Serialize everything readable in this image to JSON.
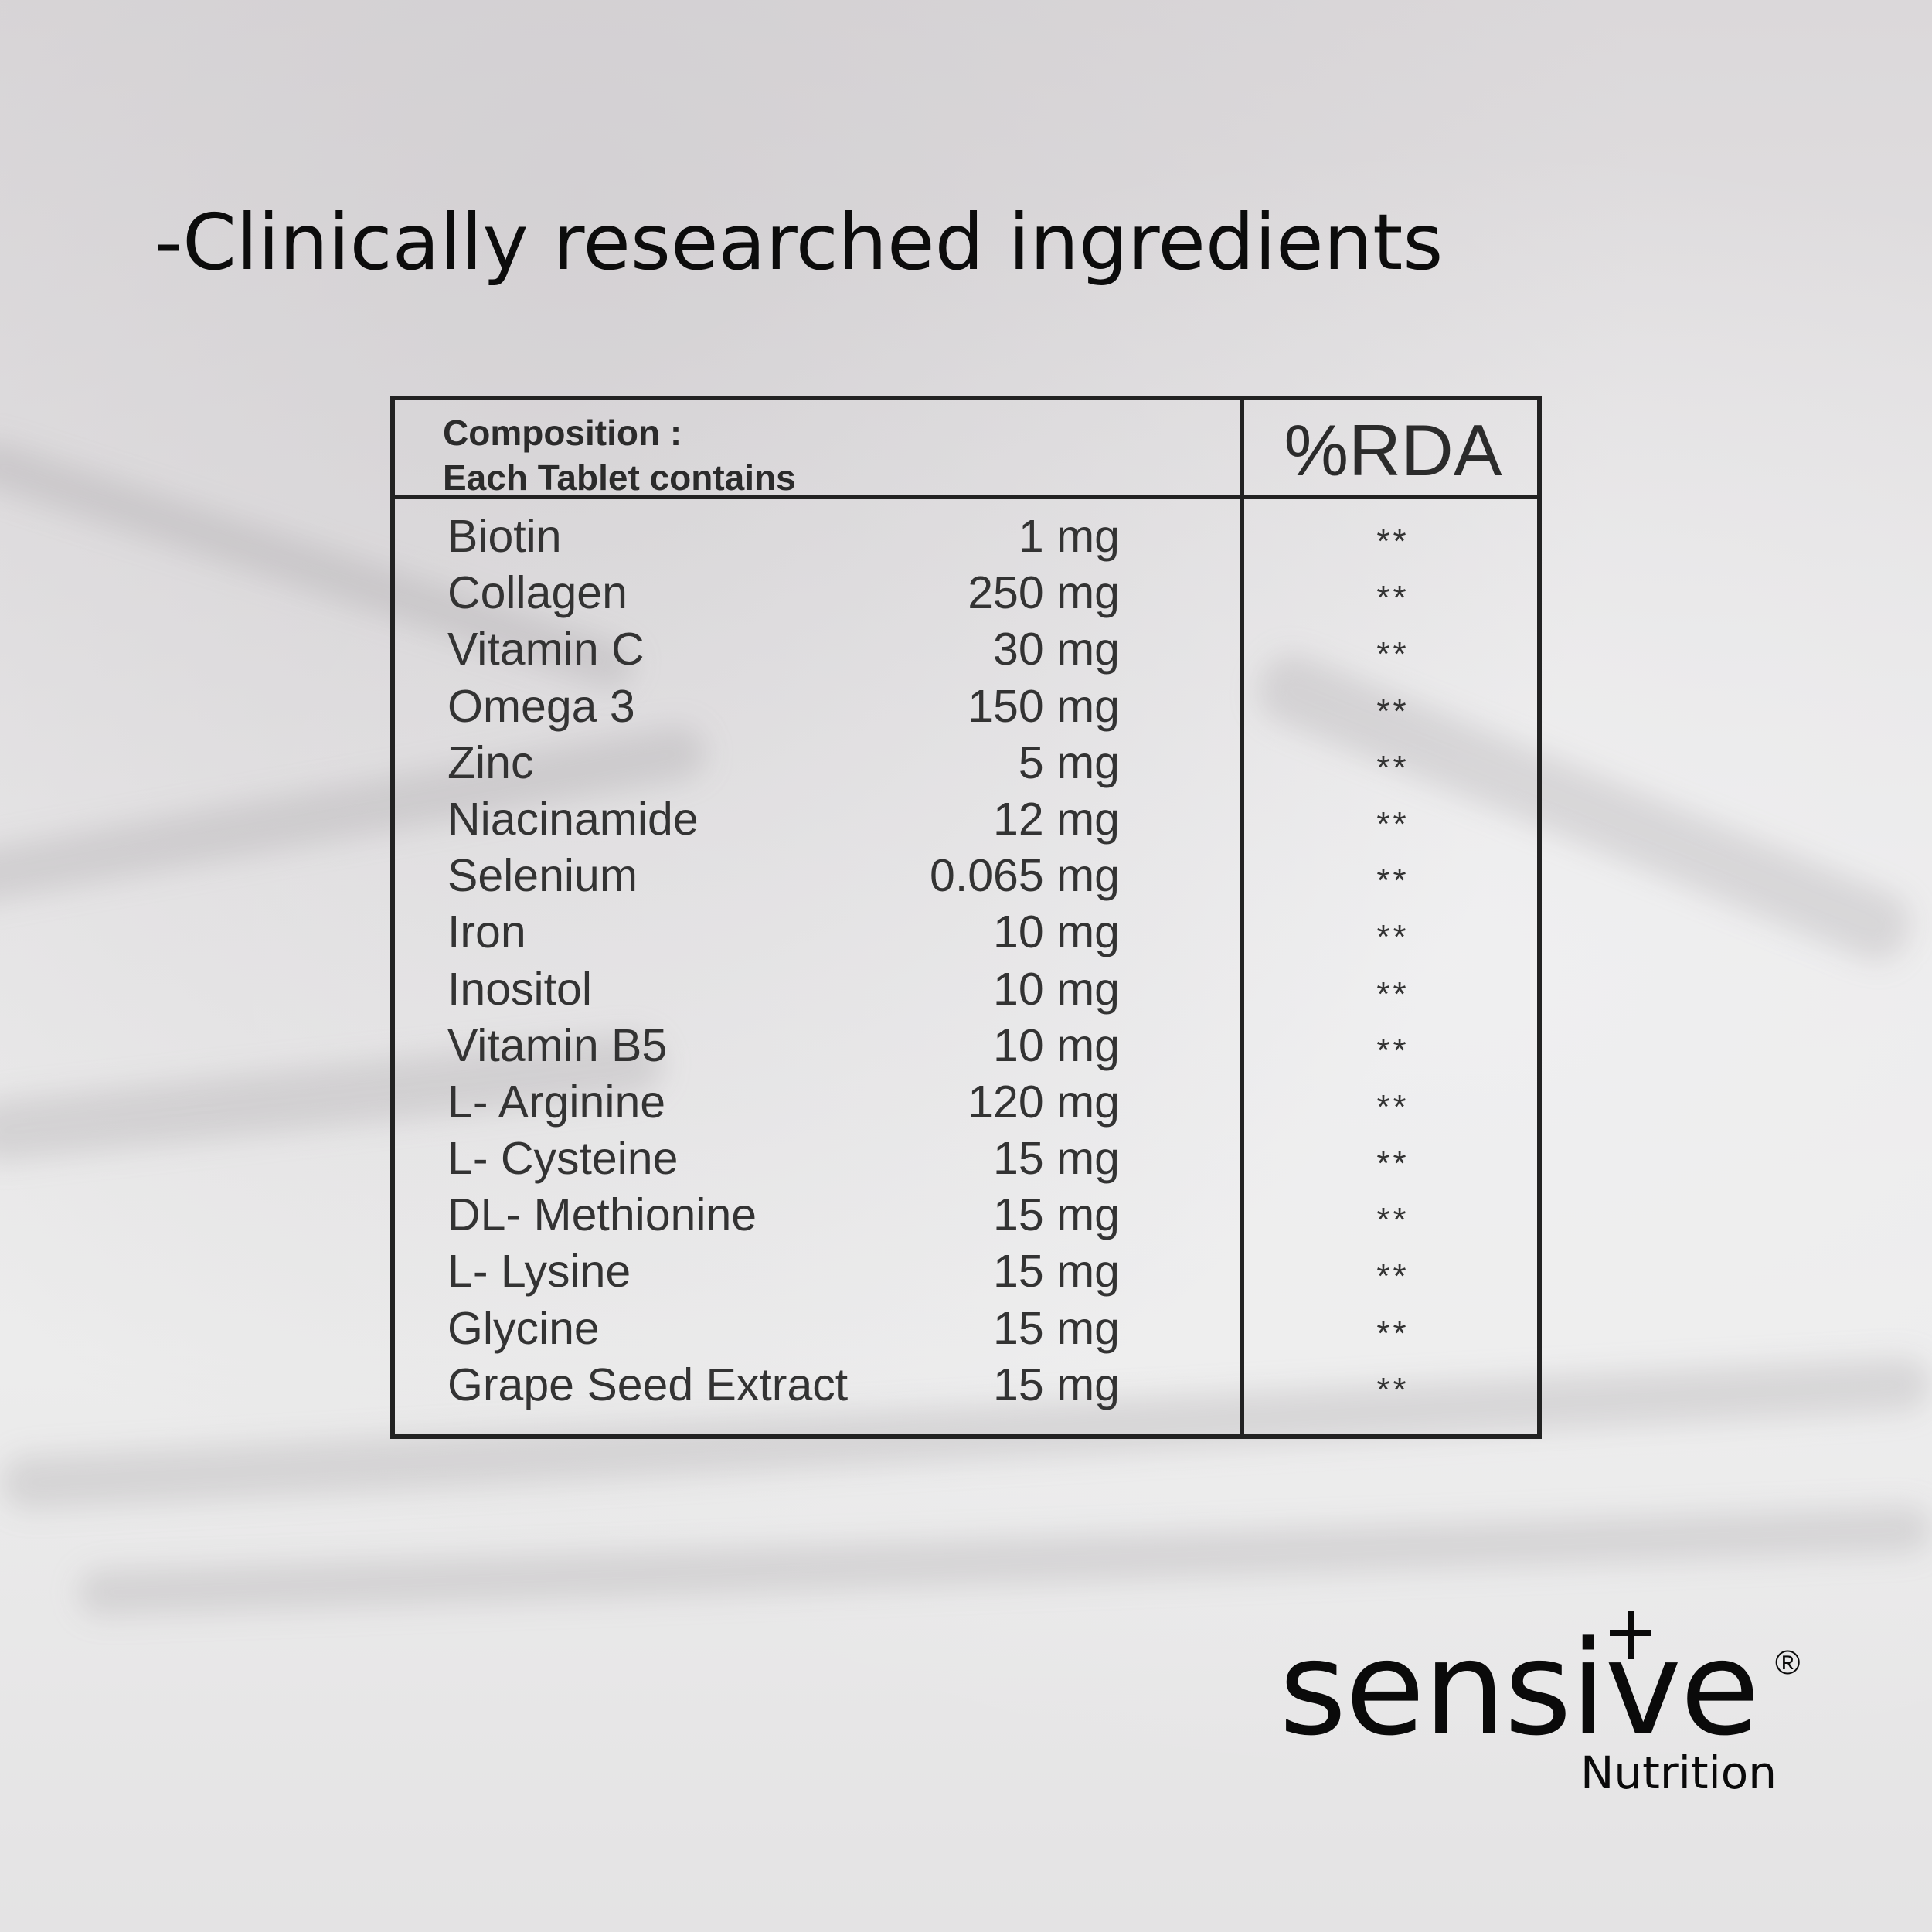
{
  "headline": "-Clinically researched ingredients",
  "composition": {
    "title": "Composition :",
    "subtitle": "Each Tablet contains",
    "rda_header": "%RDA",
    "rows": [
      {
        "name": "Biotin",
        "dose": "1 mg",
        "rda": "**"
      },
      {
        "name": "Collagen",
        "dose": "250 mg",
        "rda": "**"
      },
      {
        "name": "Vitamin C",
        "dose": "30 mg",
        "rda": "**"
      },
      {
        "name": "Omega 3",
        "dose": "150 mg",
        "rda": "**"
      },
      {
        "name": "Zinc",
        "dose": "5 mg",
        "rda": "**"
      },
      {
        "name": "Niacinamide",
        "dose": "12 mg",
        "rda": "**"
      },
      {
        "name": "Selenium",
        "dose": "0.065 mg",
        "rda": "**"
      },
      {
        "name": "Iron",
        "dose": "10 mg",
        "rda": "**"
      },
      {
        "name": "Inositol",
        "dose": "10 mg",
        "rda": "**"
      },
      {
        "name": "Vitamin B5",
        "dose": "10 mg",
        "rda": "**"
      },
      {
        "name": "L- Arginine",
        "dose": "120 mg",
        "rda": "**"
      },
      {
        "name": "L- Cysteine",
        "dose": "15 mg",
        "rda": "**"
      },
      {
        "name": "DL- Methionine",
        "dose": "15 mg",
        "rda": "**"
      },
      {
        "name": "L- Lysine",
        "dose": "15 mg",
        "rda": "**"
      },
      {
        "name": "Glycine",
        "dose": "15 mg",
        "rda": "**"
      },
      {
        "name": "Grape Seed Extract",
        "dose": "15 mg",
        "rda": "**"
      }
    ]
  },
  "logo": {
    "word": "sensive",
    "registered": "®",
    "sub": "Nutrition"
  }
}
